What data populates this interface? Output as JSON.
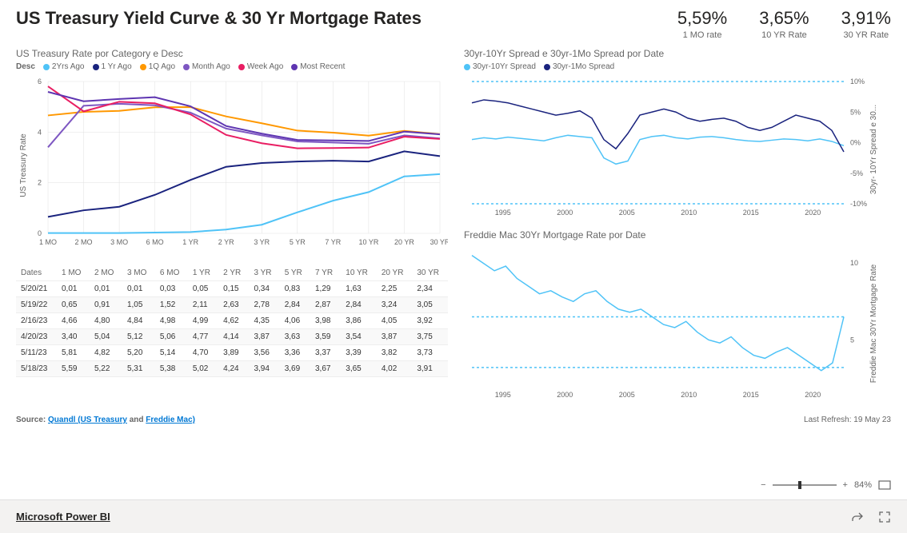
{
  "title": "US Treasury Yield Curve & 30 Yr Mortgage Rates",
  "kpis": [
    {
      "value": "5,59%",
      "label": "1 MO rate"
    },
    {
      "value": "3,65%",
      "label": "10 YR Rate"
    },
    {
      "value": "3,91%",
      "label": "30 YR Rate"
    }
  ],
  "yield_chart": {
    "title": "US Treasury Rate por Category e Desc",
    "legend_prefix": "Desc",
    "y_axis_title": "US Treasury Rate",
    "ylim": [
      0,
      6
    ],
    "ytick_step": 2,
    "categories": [
      "1 MO",
      "2 MO",
      "3 MO",
      "6 MO",
      "1 YR",
      "2 YR",
      "3 YR",
      "5 YR",
      "7 YR",
      "10 YR",
      "20 YR",
      "30 YR"
    ],
    "series": [
      {
        "name": "2Yrs Ago",
        "color": "#4fc3f7",
        "values": [
          0.01,
          0.01,
          0.01,
          0.03,
          0.05,
          0.15,
          0.34,
          0.83,
          1.29,
          1.63,
          2.25,
          2.34
        ]
      },
      {
        "name": "1 Yr Ago",
        "color": "#1a237e",
        "values": [
          0.65,
          0.91,
          1.05,
          1.52,
          2.11,
          2.63,
          2.78,
          2.84,
          2.87,
          2.84,
          3.24,
          3.05
        ]
      },
      {
        "name": "1Q Ago",
        "color": "#ff9800",
        "values": [
          4.66,
          4.8,
          4.84,
          4.98,
          4.99,
          4.62,
          4.35,
          4.06,
          3.98,
          3.86,
          4.05,
          3.92
        ]
      },
      {
        "name": "Month Ago",
        "color": "#7e57c2",
        "values": [
          3.4,
          5.04,
          5.12,
          5.06,
          4.77,
          4.14,
          3.87,
          3.63,
          3.59,
          3.54,
          3.87,
          3.75
        ]
      },
      {
        "name": "Week Ago",
        "color": "#e91e63",
        "values": [
          5.81,
          4.82,
          5.2,
          5.14,
          4.7,
          3.89,
          3.56,
          3.36,
          3.37,
          3.39,
          3.82,
          3.73
        ]
      },
      {
        "name": "Most Recent",
        "color": "#5e35b1",
        "values": [
          5.59,
          5.22,
          5.31,
          5.38,
          5.02,
          4.24,
          3.94,
          3.69,
          3.67,
          3.65,
          4.02,
          3.91
        ]
      }
    ]
  },
  "table": {
    "header": [
      "Dates",
      "1 MO",
      "2 MO",
      "3 MO",
      "6 MO",
      "1 YR",
      "2 YR",
      "3 YR",
      "5 YR",
      "7 YR",
      "10 YR",
      "20 YR",
      "30 YR"
    ],
    "rows": [
      [
        "5/20/21",
        "0,01",
        "0,01",
        "0,01",
        "0,03",
        "0,05",
        "0,15",
        "0,34",
        "0,83",
        "1,29",
        "1,63",
        "2,25",
        "2,34"
      ],
      [
        "5/19/22",
        "0,65",
        "0,91",
        "1,05",
        "1,52",
        "2,11",
        "2,63",
        "2,78",
        "2,84",
        "2,87",
        "2,84",
        "3,24",
        "3,05"
      ],
      [
        "2/16/23",
        "4,66",
        "4,80",
        "4,84",
        "4,98",
        "4,99",
        "4,62",
        "4,35",
        "4,06",
        "3,98",
        "3,86",
        "4,05",
        "3,92"
      ],
      [
        "4/20/23",
        "3,40",
        "5,04",
        "5,12",
        "5,06",
        "4,77",
        "4,14",
        "3,87",
        "3,63",
        "3,59",
        "3,54",
        "3,87",
        "3,75"
      ],
      [
        "5/11/23",
        "5,81",
        "4,82",
        "5,20",
        "5,14",
        "4,70",
        "3,89",
        "3,56",
        "3,36",
        "3,37",
        "3,39",
        "3,82",
        "3,73"
      ],
      [
        "5/18/23",
        "5,59",
        "5,22",
        "5,31",
        "5,38",
        "5,02",
        "4,24",
        "3,94",
        "3,69",
        "3,67",
        "3,65",
        "4,02",
        "3,91"
      ]
    ]
  },
  "spread_chart": {
    "title": "30yr-10Yr Spread e 30yr-1Mo Spread por Date",
    "y_axis_title": "30yr- 10Yr Spread e 30...",
    "legend": [
      {
        "name": "30yr-10Yr Spread",
        "color": "#4fc3f7"
      },
      {
        "name": "30yr-1Mo Spread",
        "color": "#1a237e"
      }
    ],
    "ylim": [
      -10,
      10
    ],
    "ytick_step": 5,
    "xticks": [
      "1995",
      "2000",
      "2005",
      "2010",
      "2015",
      "2020"
    ],
    "series_30_10": [
      0.5,
      0.8,
      0.6,
      0.9,
      0.7,
      0.5,
      0.3,
      0.8,
      1.2,
      1.0,
      0.8,
      -2.5,
      -3.5,
      -3.0,
      0.5,
      1.0,
      1.2,
      0.8,
      0.6,
      0.9,
      1.0,
      0.8,
      0.5,
      0.3,
      0.2,
      0.4,
      0.6,
      0.5,
      0.3,
      0.6,
      0.2,
      -0.5
    ],
    "series_30_1mo": [
      6.5,
      7.0,
      6.8,
      6.5,
      6.0,
      5.5,
      5.0,
      4.5,
      4.8,
      5.2,
      4.0,
      0.5,
      -1.0,
      1.5,
      4.5,
      5.0,
      5.5,
      5.0,
      4.0,
      3.5,
      3.8,
      4.0,
      3.5,
      2.5,
      2.0,
      2.5,
      3.5,
      4.5,
      4.0,
      3.5,
      2.0,
      -1.5
    ]
  },
  "mortgage_chart": {
    "title": "Freddie Mac 30Yr Mortgage Rate por Date",
    "y_axis_title": "Freddie Mac 30Yr Mortgage Rate",
    "ylim": [
      2,
      11
    ],
    "yticks": [
      5,
      10
    ],
    "ref_lines": [
      3.2,
      6.5
    ],
    "xticks": [
      "1995",
      "2000",
      "2005",
      "2010",
      "2015",
      "2020"
    ],
    "values": [
      10.5,
      10.0,
      9.5,
      9.8,
      9.0,
      8.5,
      8.0,
      8.2,
      7.8,
      7.5,
      8.0,
      8.2,
      7.5,
      7.0,
      6.8,
      7.0,
      6.5,
      6.0,
      5.8,
      6.2,
      5.5,
      5.0,
      4.8,
      5.2,
      4.5,
      4.0,
      3.8,
      4.2,
      4.5,
      4.0,
      3.5,
      3.0,
      3.5,
      6.5
    ]
  },
  "source": {
    "prefix": "Source: ",
    "link1": "Quandl (US Treasury",
    "mid": " and ",
    "link2": "Freddie Mac)",
    "refresh": "Last Refresh: 19 May 23"
  },
  "zoom": {
    "minus": "−",
    "plus": "+",
    "pct": "84%"
  },
  "brand": "Microsoft Power BI"
}
